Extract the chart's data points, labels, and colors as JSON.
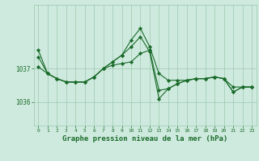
{
  "bg_color": "#ceeade",
  "grid_color": "#9ec8b0",
  "line_color": "#1a6b2a",
  "marker_color": "#1a6b2a",
  "xlabel": "Graphe pression niveau de la mer (hPa)",
  "xlabel_fontsize": 6.5,
  "yticks": [
    1036,
    1037
  ],
  "xlim": [
    -0.5,
    23.5
  ],
  "ylim": [
    1035.3,
    1038.9
  ],
  "series": [
    [
      1037.05,
      1036.85,
      1036.7,
      1036.6,
      1036.6,
      1036.6,
      1036.75,
      1037.0,
      1037.1,
      1037.15,
      1037.2,
      1037.45,
      1037.55,
      1036.35,
      1036.4,
      1036.55,
      1036.65,
      1036.7,
      1036.7,
      1036.75,
      1036.7,
      1036.45,
      1036.45,
      1036.45
    ],
    [
      1037.35,
      1036.85,
      1036.7,
      1036.6,
      1036.6,
      1036.6,
      1036.75,
      1037.0,
      1037.2,
      1037.4,
      1037.65,
      1037.95,
      1037.5,
      1036.1,
      1036.4,
      1036.55,
      1036.65,
      1036.7,
      1036.7,
      1036.75,
      1036.7,
      1036.3,
      1036.45,
      1036.45
    ],
    [
      1037.55,
      1036.85,
      1036.7,
      1036.6,
      1036.6,
      1036.6,
      1036.75,
      1037.0,
      1037.2,
      1037.4,
      1037.85,
      1038.2,
      1037.65,
      1036.85,
      1036.65,
      1036.65,
      1036.65,
      1036.7,
      1036.7,
      1036.75,
      1036.7,
      1036.3,
      1036.45,
      1036.45
    ]
  ],
  "x": [
    0,
    1,
    2,
    3,
    4,
    5,
    6,
    7,
    8,
    9,
    10,
    11,
    12,
    13,
    14,
    15,
    16,
    17,
    18,
    19,
    20,
    21,
    22,
    23
  ]
}
